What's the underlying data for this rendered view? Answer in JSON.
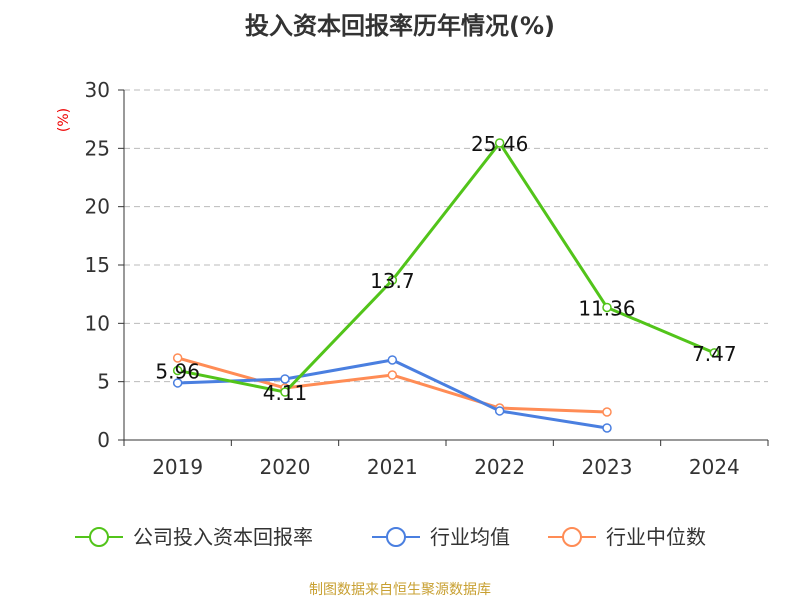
{
  "title": "投入资本回报率历年情况(%)",
  "source": "制图数据来自恒生聚源数据库",
  "chart_data": {
    "type": "line",
    "title": "投入资本回报率历年情况(%)",
    "ylabel": "(%)",
    "categories": [
      "2019",
      "2020",
      "2021",
      "2022",
      "2023",
      "2024"
    ],
    "ylim": [
      0,
      30
    ],
    "yticks": [
      0,
      5,
      10,
      15,
      20,
      25,
      30
    ],
    "grid": "horizontal dashed",
    "legend_position": "bottom",
    "series": [
      {
        "name": "公司投入资本回报率",
        "color": "#52c41a",
        "values": [
          5.96,
          4.11,
          13.7,
          25.46,
          11.36,
          7.47
        ],
        "labels": [
          "5.96",
          "4.11",
          "13.7",
          "25.46",
          "11.36",
          "7.47"
        ]
      },
      {
        "name": "行业均值",
        "color": "#4a7fe0",
        "values": [
          4.89,
          5.23,
          6.86,
          2.49,
          1.03,
          null
        ]
      },
      {
        "name": "行业中位数",
        "color": "#ff8c55",
        "values": [
          7.03,
          4.46,
          5.57,
          2.74,
          2.4,
          null
        ]
      }
    ]
  }
}
